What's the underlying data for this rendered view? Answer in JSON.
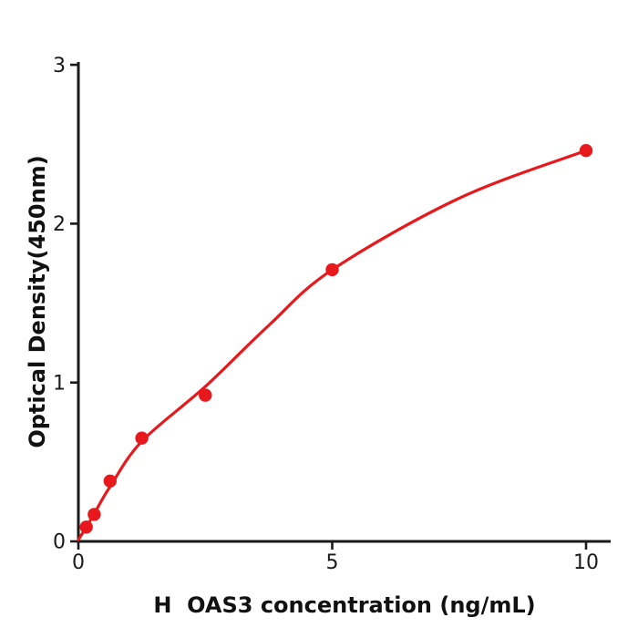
{
  "figure": {
    "background": "#ffffff"
  },
  "chart_data": {
    "type": "scatter",
    "title": "",
    "xlabel": "H  OAS3 concentration (ng/mL)",
    "ylabel": "Optical Density(450nm)",
    "x_ticks": [
      0,
      5,
      10
    ],
    "y_ticks": [
      0,
      1,
      2,
      3
    ],
    "xlim": [
      0,
      10.5
    ],
    "ylim": [
      0,
      3.02
    ],
    "grid": false,
    "legend_position": "none",
    "point_color": "#e8191c",
    "curve_color": "#e8191c",
    "axis_color": "#1a1a1a",
    "tick_label_color": "#1a1a1a",
    "points": [
      {
        "x": 0.156,
        "y": 0.09
      },
      {
        "x": 0.3125,
        "y": 0.17
      },
      {
        "x": 0.625,
        "y": 0.38
      },
      {
        "x": 1.25,
        "y": 0.65
      },
      {
        "x": 2.5,
        "y": 0.92
      },
      {
        "x": 5,
        "y": 1.71
      },
      {
        "x": 10,
        "y": 2.46
      }
    ],
    "fit_curve": [
      {
        "x": 0,
        "y": 0.01
      },
      {
        "x": 0.156,
        "y": 0.09
      },
      {
        "x": 0.3125,
        "y": 0.175
      },
      {
        "x": 0.625,
        "y": 0.345
      },
      {
        "x": 1.25,
        "y": 0.63
      },
      {
        "x": 2.5,
        "y": 0.975
      },
      {
        "x": 3.75,
        "y": 1.36
      },
      {
        "x": 5,
        "y": 1.71
      },
      {
        "x": 7.5,
        "y": 2.16
      },
      {
        "x": 10,
        "y": 2.46
      }
    ]
  }
}
